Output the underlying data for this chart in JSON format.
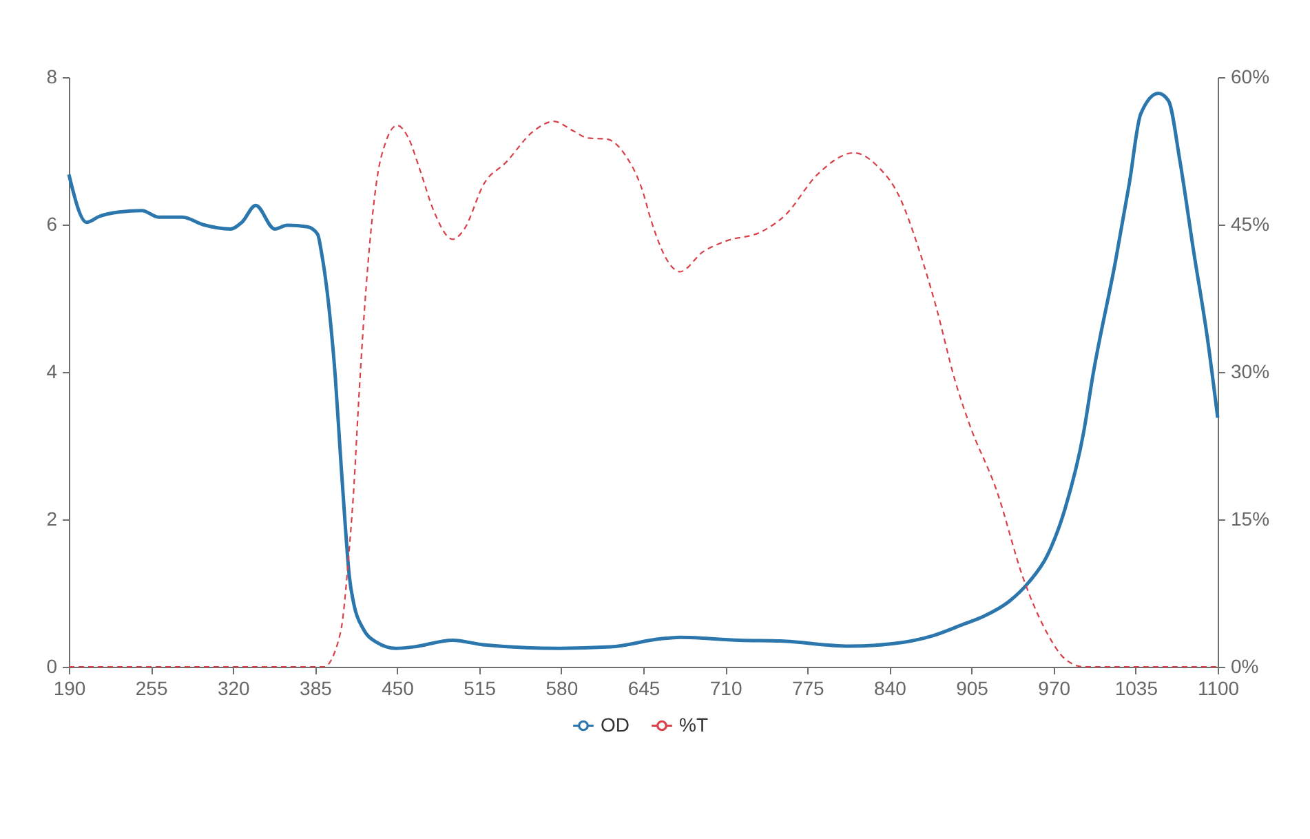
{
  "chart_data": {
    "type": "line",
    "xlim": [
      190,
      1100
    ],
    "xticks": [
      190,
      255,
      320,
      385,
      450,
      515,
      580,
      645,
      710,
      775,
      840,
      905,
      970,
      1035,
      1100
    ],
    "ylim": [
      0,
      8
    ],
    "yticks": [
      0,
      2,
      4,
      6,
      8
    ],
    "y2lim": [
      0,
      60
    ],
    "y2ticks": [
      {
        "value": 0,
        "label": "0%"
      },
      {
        "value": 15,
        "label": "15%"
      },
      {
        "value": 30,
        "label": "30%"
      },
      {
        "value": 45,
        "label": "45%"
      },
      {
        "value": 60,
        "label": "60%"
      }
    ],
    "grid": false,
    "legend": "bottom",
    "series": [
      {
        "name": "OD",
        "color": "#2b77ad",
        "line_style": "solid",
        "x": [
          190,
          204,
          214,
          230,
          248,
          261,
          280,
          296,
          318,
          327,
          338,
          353,
          363,
          379,
          387,
          390,
          396,
          401,
          405,
          409,
          412,
          416,
          423,
          434,
          449,
          463,
          494,
          518,
          579,
          619,
          659,
          674,
          721,
          754,
          808,
          841,
          874,
          899,
          914,
          935,
          950,
          965,
          979,
          994,
          1001,
          1019,
          1030,
          1039,
          1053,
          1061,
          1070,
          1081,
          1092,
          1100
        ],
        "values": [
          6.68,
          6.03,
          6.11,
          6.17,
          6.19,
          6.1,
          6.1,
          6.0,
          5.94,
          6.03,
          6.26,
          5.94,
          5.99,
          5.97,
          5.87,
          5.63,
          4.88,
          3.94,
          2.9,
          1.9,
          1.25,
          0.83,
          0.52,
          0.33,
          0.25,
          0.27,
          0.36,
          0.3,
          0.25,
          0.27,
          0.38,
          0.4,
          0.36,
          0.35,
          0.28,
          0.31,
          0.42,
          0.58,
          0.68,
          0.89,
          1.14,
          1.51,
          2.14,
          3.2,
          3.94,
          5.5,
          6.56,
          7.5,
          7.78,
          7.68,
          6.87,
          5.63,
          4.44,
          3.38
        ]
      },
      {
        "name": "%T",
        "color": "#d9414a",
        "line_style": "dashed",
        "axis": "y2",
        "x": [
          190,
          392,
          405,
          412,
          416,
          419,
          423,
          428,
          434,
          441,
          450,
          459,
          468,
          479,
          494,
          503,
          519,
          536,
          558,
          574,
          590,
          601,
          616,
          630,
          645,
          651,
          667,
          674,
          692,
          710,
          739,
          757,
          783,
          812,
          830,
          848,
          863,
          877,
          892,
          903,
          925,
          946,
          965,
          979,
          994,
          1100
        ],
        "values": [
          0,
          0,
          3.4,
          11.8,
          18.8,
          25.8,
          34.2,
          42.6,
          49.6,
          53.4,
          55.1,
          53.8,
          50.6,
          46.4,
          43.5,
          44.5,
          49.2,
          51.3,
          54.5,
          55.5,
          54.5,
          53.8,
          53.7,
          52.2,
          48.2,
          45.5,
          40.8,
          40.2,
          42.2,
          43.3,
          44.3,
          45.9,
          50.1,
          52.3,
          51.0,
          47.8,
          42.6,
          36.6,
          29.1,
          24.8,
          17.9,
          9.0,
          3.4,
          0.8,
          0,
          0
        ]
      }
    ]
  }
}
